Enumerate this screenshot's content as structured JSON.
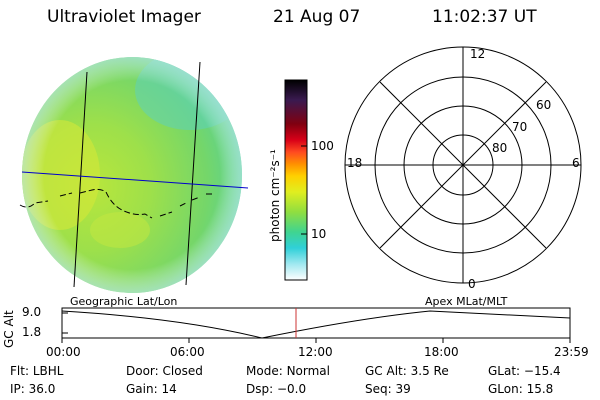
{
  "header": {
    "title": "Ultraviolet Imager",
    "date": "21 Aug 07",
    "time": "11:02:37 UT"
  },
  "colorbar": {
    "unit_label": "photon cm⁻²s⁻¹",
    "ticks": [
      "100",
      "10"
    ]
  },
  "polar_plot": {
    "mlt_labels": {
      "top": "12",
      "left": "18",
      "right": "6",
      "bottom": "0"
    },
    "lat_labels": [
      "60",
      "70",
      "80"
    ]
  },
  "panel_labels": {
    "left": "Geographic Lat/Lon",
    "right": "Apex MLat/MLT"
  },
  "altitude_chart": {
    "ylabel": "GC Alt",
    "yticks": [
      "9.0",
      "1.8"
    ],
    "xticks": [
      "00:00",
      "06:00",
      "12:00",
      "18:00",
      "23:59"
    ]
  },
  "footer": {
    "row1": [
      {
        "label": "Flt:",
        "value": "LBHL"
      },
      {
        "label": "Door:",
        "value": "Closed"
      },
      {
        "label": "Mode:",
        "value": "Normal"
      },
      {
        "label": "GC Alt:",
        "value": "3.5 Re"
      },
      {
        "label": "GLat:",
        "value": "−15.4"
      }
    ],
    "row2": [
      {
        "label": "IP:",
        "value": "36.0"
      },
      {
        "label": "Gain:",
        "value": "14"
      },
      {
        "label": "Dsp:",
        "value": "−0.0"
      },
      {
        "label": "Seq:",
        "value": "39"
      },
      {
        "label": "GLon:",
        "value": "15.8"
      }
    ]
  }
}
